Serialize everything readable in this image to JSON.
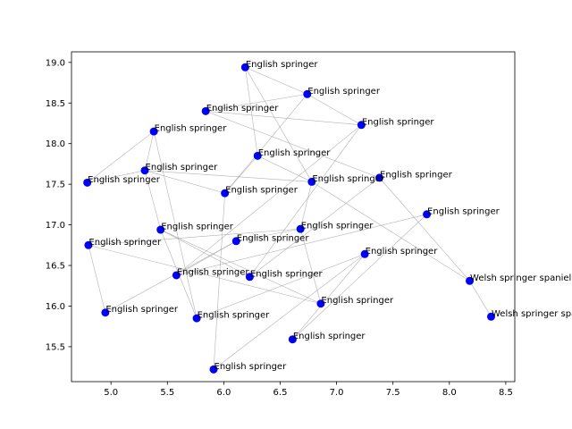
{
  "chart_data": {
    "type": "scatter",
    "title": "",
    "xlabel": "",
    "ylabel": "",
    "xlim": [
      4.65,
      8.58
    ],
    "ylim": [
      15.07,
      19.13
    ],
    "grid": false,
    "point_color": "#0000ff",
    "edge_color": "#999999",
    "x_ticks": [
      5.0,
      5.5,
      6.0,
      6.5,
      7.0,
      7.5,
      8.0,
      8.5
    ],
    "x_tick_labels": [
      "5.0",
      "5.5",
      "6.0",
      "6.5",
      "7.0",
      "7.5",
      "8.0",
      "8.5"
    ],
    "y_ticks": [
      15.5,
      16.0,
      16.5,
      17.0,
      17.5,
      18.0,
      18.5,
      19.0
    ],
    "y_tick_labels": [
      "15.5",
      "16.0",
      "16.5",
      "17.0",
      "17.5",
      "18.0",
      "18.5",
      "19.0"
    ],
    "points": [
      {
        "x": 6.19,
        "y": 18.94,
        "label": "English springer"
      },
      {
        "x": 6.74,
        "y": 18.61,
        "label": "English springer"
      },
      {
        "x": 5.84,
        "y": 18.4,
        "label": "English springer"
      },
      {
        "x": 7.22,
        "y": 18.23,
        "label": "English springer"
      },
      {
        "x": 5.38,
        "y": 18.15,
        "label": "English springer"
      },
      {
        "x": 6.3,
        "y": 17.85,
        "label": "English springer"
      },
      {
        "x": 5.3,
        "y": 17.67,
        "label": "English springer"
      },
      {
        "x": 7.38,
        "y": 17.58,
        "label": "English springer"
      },
      {
        "x": 4.79,
        "y": 17.52,
        "label": "English springer"
      },
      {
        "x": 6.78,
        "y": 17.53,
        "label": "English springer"
      },
      {
        "x": 6.01,
        "y": 17.39,
        "label": "English springer"
      },
      {
        "x": 7.8,
        "y": 17.13,
        "label": "English springer"
      },
      {
        "x": 5.44,
        "y": 16.94,
        "label": "English springer"
      },
      {
        "x": 6.68,
        "y": 16.95,
        "label": "English springer"
      },
      {
        "x": 6.11,
        "y": 16.8,
        "label": "English springer"
      },
      {
        "x": 4.8,
        "y": 16.75,
        "label": "English springer"
      },
      {
        "x": 7.25,
        "y": 16.64,
        "label": "English springer"
      },
      {
        "x": 5.58,
        "y": 16.38,
        "label": "English springer"
      },
      {
        "x": 6.23,
        "y": 16.36,
        "label": "English springer"
      },
      {
        "x": 8.18,
        "y": 16.31,
        "label": "Welsh springer spaniel"
      },
      {
        "x": 6.86,
        "y": 16.03,
        "label": "English springer"
      },
      {
        "x": 4.95,
        "y": 15.92,
        "label": "English springer"
      },
      {
        "x": 5.76,
        "y": 15.85,
        "label": "English springer"
      },
      {
        "x": 8.37,
        "y": 15.87,
        "label": "Welsh springer spaniel"
      },
      {
        "x": 6.61,
        "y": 15.59,
        "label": "English springer"
      },
      {
        "x": 5.91,
        "y": 15.22,
        "label": "English springer"
      }
    ],
    "edges": [
      [
        0,
        1
      ],
      [
        0,
        5
      ],
      [
        0,
        9
      ],
      [
        2,
        1
      ],
      [
        2,
        3
      ],
      [
        2,
        7
      ],
      [
        1,
        3
      ],
      [
        4,
        8
      ],
      [
        4,
        6
      ],
      [
        4,
        22
      ],
      [
        6,
        9
      ],
      [
        6,
        12
      ],
      [
        6,
        10
      ],
      [
        5,
        9
      ],
      [
        5,
        10
      ],
      [
        9,
        19
      ],
      [
        9,
        13
      ],
      [
        10,
        1
      ],
      [
        10,
        25
      ],
      [
        11,
        17
      ],
      [
        11,
        24
      ],
      [
        12,
        18
      ],
      [
        12,
        20
      ],
      [
        13,
        14
      ],
      [
        13,
        20
      ],
      [
        14,
        17
      ],
      [
        15,
        21
      ],
      [
        15,
        20
      ],
      [
        16,
        22
      ],
      [
        16,
        25
      ],
      [
        18,
        7
      ],
      [
        18,
        3
      ],
      [
        17,
        3
      ],
      [
        19,
        23
      ],
      [
        19,
        7
      ],
      [
        21,
        14
      ],
      [
        15,
        13
      ],
      [
        22,
        12
      ],
      [
        24,
        16
      ],
      [
        8,
        6
      ]
    ]
  }
}
